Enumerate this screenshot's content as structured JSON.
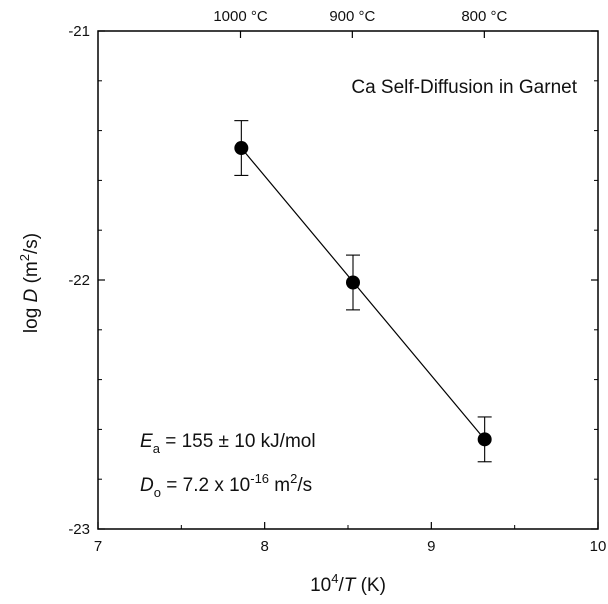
{
  "chart_data": {
    "type": "scatter",
    "title": "Ca Self-Diffusion in Garnet",
    "x_axis": {
      "label_prefix": "10",
      "label_sup": "4",
      "label_slash": "/",
      "label_var": "T",
      "label_unit": " (K)",
      "range": [
        7,
        10
      ],
      "ticks": [
        7,
        8,
        9,
        10
      ],
      "tick_labels": [
        "7",
        "8",
        "9",
        "10"
      ]
    },
    "y_axis": {
      "label_log": "log ",
      "label_var": "D",
      "label_unit_open": " (m",
      "label_sup": "2",
      "label_unit_close": "/s)",
      "range": [
        -23,
        -21
      ],
      "ticks": [
        -23,
        -22,
        -21
      ],
      "tick_labels": [
        "-23",
        "-22",
        "-21"
      ]
    },
    "top_axis": {
      "ticks": [
        {
          "x": 7.855,
          "label": "1000 °C"
        },
        {
          "x": 8.526,
          "label": "900 °C"
        },
        {
          "x": 9.318,
          "label": "800 °C"
        }
      ]
    },
    "series": [
      {
        "points": [
          {
            "x": 7.86,
            "y": -21.47,
            "err": 0.11
          },
          {
            "x": 8.53,
            "y": -22.01,
            "err": 0.11
          },
          {
            "x": 9.32,
            "y": -22.64,
            "err": 0.09
          }
        ],
        "marker": "filled-circle",
        "color": "#000000"
      }
    ],
    "fit_line": {
      "x": [
        7.86,
        9.32
      ],
      "y": [
        -21.47,
        -22.64
      ]
    },
    "annotations": {
      "ea_symbol": "E",
      "ea_sub": "a",
      "ea_text": " = 155 ± 10 kJ/mol",
      "do_symbol": "D",
      "do_sub": "o",
      "do_text_1": " = 7.2 x 10",
      "do_sup_1": "-16",
      "do_text_2": " m",
      "do_sup_2": "2",
      "do_text_3": "/s"
    },
    "grid": false,
    "legend": "none"
  }
}
